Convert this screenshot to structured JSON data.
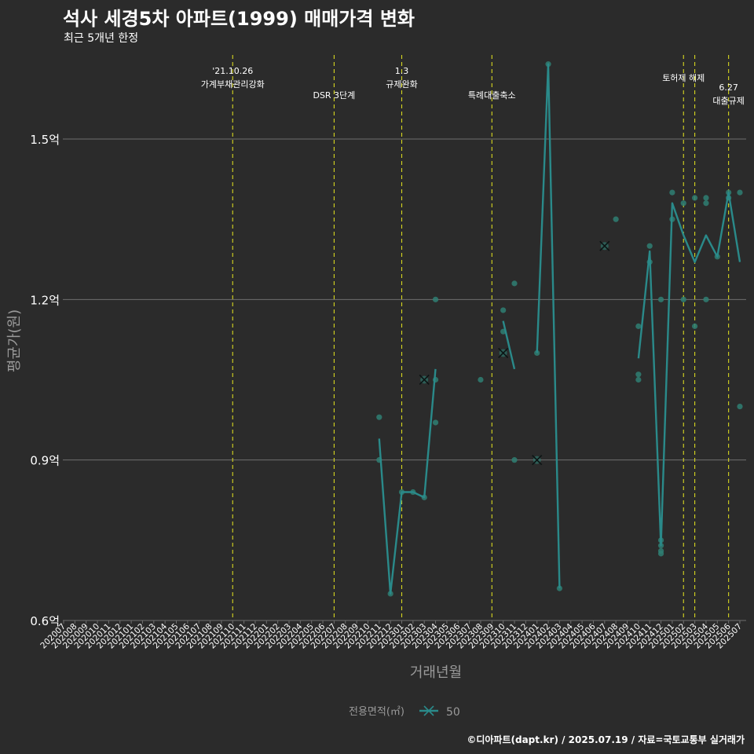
{
  "chart_data": {
    "type": "line",
    "title": "석사 세경5차 아파트(1999) 매매가격 변화",
    "subtitle": "최근 5개년 한정",
    "xlabel": "거래년월",
    "ylabel": "평균가(원)",
    "caption": "©디아파트(dapt.kr) / 2025.07.19 / 자료=국토교통부 실거래가",
    "legend": {
      "title": "전용면적(㎡)",
      "entries": [
        "50"
      ],
      "position": "bottom"
    },
    "ylim": [
      0.6,
      1.66
    ],
    "y_ticks": [
      {
        "value": 0.6,
        "label": "0.6억"
      },
      {
        "value": 0.9,
        "label": "0.9억"
      },
      {
        "value": 1.2,
        "label": "1.2억"
      },
      {
        "value": 1.5,
        "label": "1.5억"
      }
    ],
    "categories": [
      "202007",
      "202008",
      "202009",
      "202010",
      "202011",
      "202012",
      "202101",
      "202102",
      "202103",
      "202104",
      "202105",
      "202106",
      "202107",
      "202108",
      "202109",
      "202110",
      "202111",
      "202112",
      "202201",
      "202202",
      "202203",
      "202204",
      "202205",
      "202206",
      "202207",
      "202208",
      "202209",
      "202210",
      "202211",
      "202212",
      "202301",
      "202302",
      "202303",
      "202304",
      "202305",
      "202306",
      "202307",
      "202308",
      "202309",
      "202310",
      "202311",
      "202312",
      "202401",
      "202402",
      "202403",
      "202404",
      "202405",
      "202406",
      "202407",
      "202408",
      "202409",
      "202410",
      "202411",
      "202412",
      "202501",
      "202502",
      "202503",
      "202504",
      "202505",
      "202506",
      "202507"
    ],
    "series": [
      {
        "name": "50",
        "line_segments": [
          [
            [
              "202211",
              0.94
            ],
            [
              "202212",
              0.65
            ],
            [
              "202301",
              0.84
            ],
            [
              "202302",
              0.84
            ],
            [
              "202303",
              0.83
            ],
            [
              "202304",
              1.07
            ]
          ],
          [
            [
              "202310",
              1.16
            ],
            [
              "202311",
              1.07
            ]
          ],
          [
            [
              "202401",
              1.1
            ],
            [
              "202402",
              1.64
            ],
            [
              "202403",
              0.66
            ]
          ],
          [
            [
              "202410",
              1.09
            ],
            [
              "202411",
              1.29
            ],
            [
              "202412",
              0.74
            ],
            [
              "202501",
              1.38
            ],
            [
              "202502",
              1.32
            ],
            [
              "202503",
              1.27
            ],
            [
              "202504",
              1.32
            ],
            [
              "202505",
              1.28
            ],
            [
              "202506",
              1.4
            ],
            [
              "202507",
              1.27
            ]
          ]
        ],
        "points": [
          [
            "202211",
            0.98
          ],
          [
            "202211",
            0.9
          ],
          [
            "202212",
            0.65
          ],
          [
            "202301",
            0.84
          ],
          [
            "202302",
            0.84
          ],
          [
            "202303",
            0.83
          ],
          [
            "202304",
            1.2
          ],
          [
            "202304",
            1.05
          ],
          [
            "202304",
            0.97
          ],
          [
            "202308",
            1.05
          ],
          [
            "202310",
            1.18
          ],
          [
            "202310",
            1.14
          ],
          [
            "202311",
            1.23
          ],
          [
            "202311",
            0.9
          ],
          [
            "202401",
            1.1
          ],
          [
            "202402",
            1.64
          ],
          [
            "202403",
            0.66
          ],
          [
            "202408",
            1.35
          ],
          [
            "202410",
            1.15
          ],
          [
            "202410",
            1.06
          ],
          [
            "202410",
            1.05
          ],
          [
            "202411",
            1.3
          ],
          [
            "202411",
            1.27
          ],
          [
            "202412",
            1.2
          ],
          [
            "202412",
            0.75
          ],
          [
            "202412",
            0.74
          ],
          [
            "202412",
            0.73
          ],
          [
            "202412",
            0.725
          ],
          [
            "202501",
            1.4
          ],
          [
            "202501",
            1.35
          ],
          [
            "202502",
            1.38
          ],
          [
            "202502",
            1.2
          ],
          [
            "202503",
            1.39
          ],
          [
            "202503",
            1.15
          ],
          [
            "202504",
            1.39
          ],
          [
            "202504",
            1.38
          ],
          [
            "202504",
            1.2
          ],
          [
            "202505",
            1.28
          ],
          [
            "202506",
            1.4
          ],
          [
            "202506",
            1.39
          ],
          [
            "202507",
            1.4
          ],
          [
            "202507",
            1.0
          ]
        ],
        "cross_marks": [
          [
            "202303",
            1.05
          ],
          [
            "202310",
            1.1
          ],
          [
            "202401",
            0.9
          ],
          [
            "202407",
            1.3
          ]
        ]
      }
    ],
    "vlines": [
      {
        "x": "202110",
        "label": [
          "'21.10.26",
          "가계부채관리강화"
        ],
        "level": 1
      },
      {
        "x": "202207",
        "label": [
          "DSR 3단계"
        ],
        "level": 2
      },
      {
        "x": "202301",
        "label": [
          "1.3",
          "규제완화"
        ],
        "level": 1
      },
      {
        "x": "202309",
        "label": [
          "특례대출축소"
        ],
        "level": 2
      },
      {
        "x": "202502",
        "label": [
          "토허제 해제"
        ],
        "level": 1
      },
      {
        "x": "202503",
        "label": [],
        "level": 0
      },
      {
        "x": "202506",
        "label": [
          "6.27",
          "대출규제"
        ],
        "level": 3
      }
    ],
    "colors": {
      "background": "#2b2b2b",
      "grid": "#6f6f6f",
      "series": "#2a8a8a",
      "point": "#2f7f73",
      "vline": "#d8d820",
      "text": "#ffffff",
      "axis_title": "#9a9a9a"
    },
    "grid": true
  }
}
